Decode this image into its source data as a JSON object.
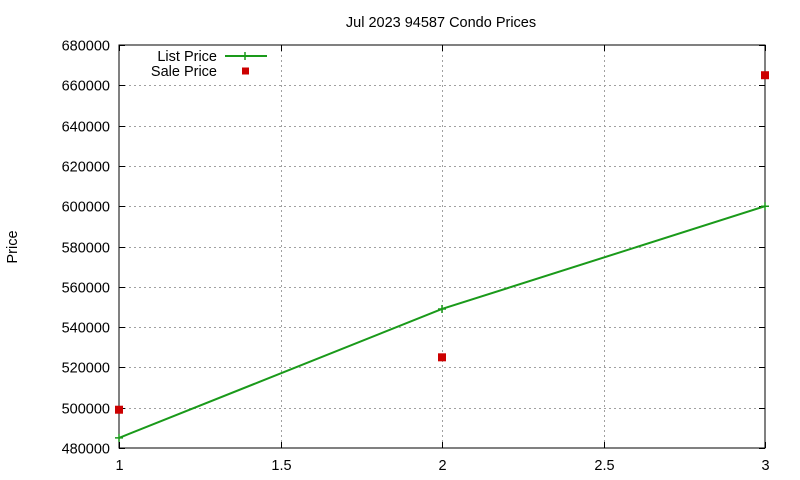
{
  "chart_data": {
    "type": "line",
    "title": "Jul 2023 94587 Condo Prices",
    "xlabel": "",
    "ylabel": "Price",
    "xlim": [
      1,
      3
    ],
    "ylim": [
      480000,
      680000
    ],
    "x_ticks": [
      1,
      1.5,
      2,
      2.5,
      3
    ],
    "x_tick_labels": [
      "1",
      "1.5",
      "2",
      "2.5",
      "3"
    ],
    "y_ticks": [
      480000,
      500000,
      520000,
      540000,
      560000,
      580000,
      600000,
      620000,
      640000,
      660000,
      680000
    ],
    "y_tick_labels": [
      "480000",
      "500000",
      "520000",
      "540000",
      "560000",
      "580000",
      "600000",
      "620000",
      "640000",
      "660000",
      "680000"
    ],
    "grid": true,
    "legend_position": "top-left",
    "series": [
      {
        "name": "List Price",
        "style": "line-with-plus-markers",
        "color": "#1a9a1a",
        "x": [
          1,
          2,
          3
        ],
        "values": [
          485000,
          549000,
          600000
        ]
      },
      {
        "name": "Sale Price",
        "style": "square-markers",
        "color": "#cc0000",
        "x": [
          1,
          2,
          3
        ],
        "values": [
          499000,
          525000,
          665000
        ]
      }
    ]
  }
}
